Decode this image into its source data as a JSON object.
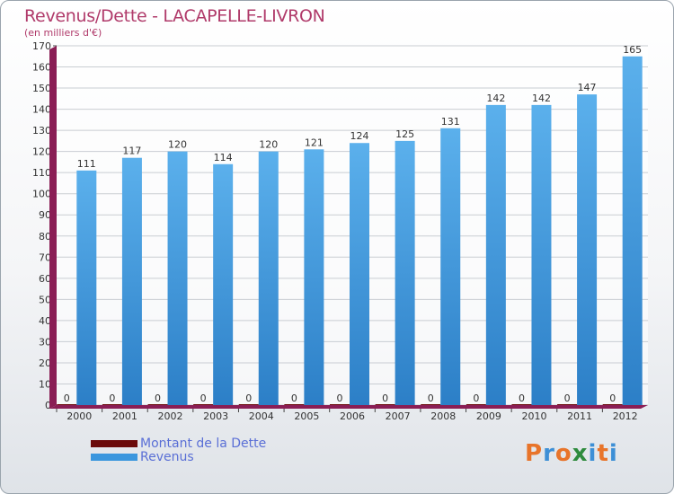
{
  "header": {
    "title": "Revenus/Dette - LACAPELLE-LIVRON",
    "subtitle": "(en milliers d'€)"
  },
  "chart_data": {
    "type": "bar",
    "categories": [
      "2000",
      "2001",
      "2002",
      "2003",
      "2004",
      "2005",
      "2006",
      "2007",
      "2008",
      "2009",
      "2010",
      "2011",
      "2012"
    ],
    "series": [
      {
        "name": "Montant de la Dette",
        "values": [
          0,
          0,
          0,
          0,
          0,
          0,
          0,
          0,
          0,
          0,
          0,
          0,
          0
        ],
        "color": "#6b0a0a"
      },
      {
        "name": "Revenus",
        "values": [
          111,
          117,
          120,
          114,
          120,
          121,
          124,
          125,
          131,
          142,
          142,
          147,
          165
        ],
        "color": "#3a96de"
      }
    ],
    "ylim": [
      0,
      170
    ],
    "yticks": [
      0,
      10,
      20,
      30,
      40,
      50,
      60,
      70,
      80,
      90,
      100,
      110,
      120,
      130,
      140,
      150,
      160,
      170
    ],
    "grid": true,
    "legend_position": "bottom-left"
  },
  "legend": {
    "items": [
      {
        "label": "Montant de la Dette",
        "color": "#6b0a0a"
      },
      {
        "label": "Revenus",
        "color": "#3a96de"
      }
    ]
  },
  "logo": {
    "letters": [
      {
        "ch": "P",
        "color": "#e8742a"
      },
      {
        "ch": "r",
        "color": "#3d8fd6"
      },
      {
        "ch": "o",
        "color": "#e8742a"
      },
      {
        "ch": "x",
        "color": "#2e8b3d"
      },
      {
        "ch": "i",
        "color": "#3d8fd6"
      },
      {
        "ch": "t",
        "color": "#e8742a"
      },
      {
        "ch": "i",
        "color": "#3d8fd6"
      }
    ]
  }
}
